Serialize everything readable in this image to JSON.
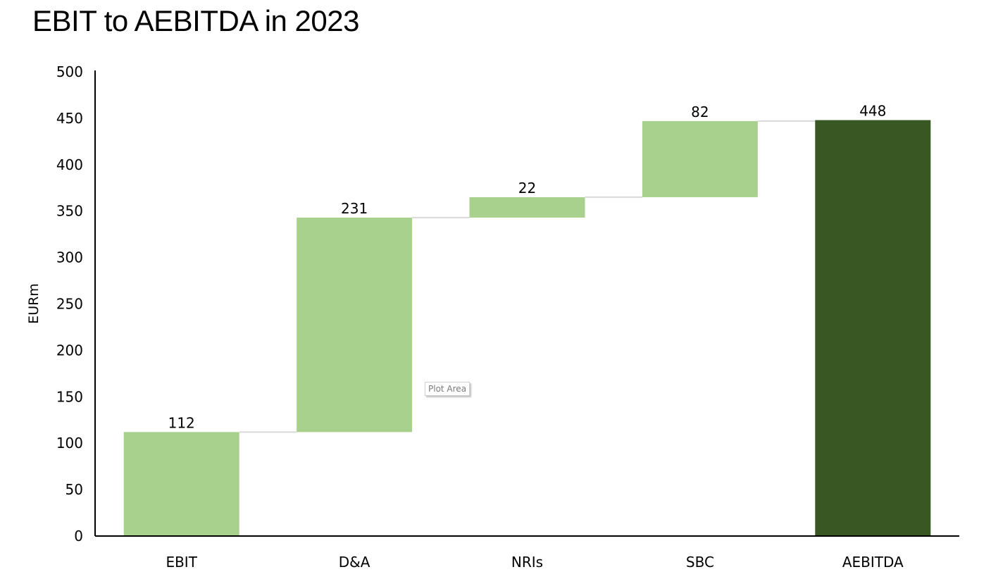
{
  "chart_data": {
    "type": "bar",
    "subtype": "waterfall",
    "title": "EBIT to AEBITDA in 2023",
    "xlabel": "",
    "ylabel": "EURm",
    "ylim": [
      0,
      500
    ],
    "yticks": [
      0,
      50,
      100,
      150,
      200,
      250,
      300,
      350,
      400,
      450,
      500
    ],
    "categories": [
      "EBIT",
      "D&A",
      "NRIs",
      "SBC",
      "AEBITDA"
    ],
    "values": [
      112,
      231,
      22,
      82,
      448
    ],
    "bar_kinds": [
      "total",
      "increase",
      "increase",
      "increase",
      "total"
    ],
    "data_labels": [
      "112",
      "231",
      "22",
      "82",
      "448"
    ],
    "grid": false,
    "legend": "none",
    "colors": {
      "increase": "#a9d18e",
      "total": "#385723",
      "connector": "#d9d9d9",
      "axis": "#000000"
    }
  },
  "ui": {
    "tooltip_text": "Plot Area"
  }
}
